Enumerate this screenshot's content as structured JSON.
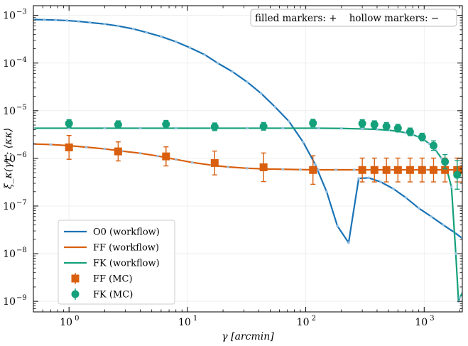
{
  "chart_data": {
    "type": "line",
    "xlabel": "γ [arcmin]",
    "ylabel": "ξ_κ(γ) : ⟨κκ⟩",
    "xscale": "log",
    "yscale": "log",
    "xlim": [
      0.5,
      2100
    ],
    "ylim": [
      6e-10,
      0.0016
    ],
    "x_ticks": [
      {
        "value": 1,
        "mant": "10",
        "exp": "0"
      },
      {
        "value": 10,
        "mant": "10",
        "exp": "1"
      },
      {
        "value": 100,
        "mant": "10",
        "exp": "2"
      },
      {
        "value": 1000,
        "mant": "10",
        "exp": "3"
      }
    ],
    "y_ticks": [
      {
        "value": 1e-09,
        "mant": "10",
        "exp": "−9"
      },
      {
        "value": 1e-08,
        "mant": "10",
        "exp": "−8"
      },
      {
        "value": 1e-07,
        "mant": "10",
        "exp": "−7"
      },
      {
        "value": 1e-06,
        "mant": "10",
        "exp": "−6"
      },
      {
        "value": 1e-05,
        "mant": "10",
        "exp": "−5"
      },
      {
        "value": 0.0001,
        "mant": "10",
        "exp": "−4"
      },
      {
        "value": 0.001,
        "mant": "10",
        "exp": "−3"
      }
    ],
    "grid": true,
    "legend_position": "lower-left",
    "annotation": "filled markers: +    hollow markers: −",
    "series": [
      {
        "name": "O0 (workflow)",
        "kind": "line",
        "color": "#1a73b5",
        "x": [
          0.5,
          0.62,
          0.77,
          0.96,
          1.2,
          1.5,
          2.0,
          2.6,
          3.5,
          4.5,
          6.0,
          8.0,
          10.5,
          14.0,
          18.0,
          24.0,
          32.0,
          42.0,
          55.0,
          72.0,
          95.0,
          120.0,
          150.0,
          185.0,
          230.0,
          280.0,
          340.0,
          430.0,
          550.0,
          700.0,
          900.0,
          1150.0,
          1450.0,
          1800.0,
          2100.0
        ],
        "y": [
          0.00082,
          0.00081,
          0.0008,
          0.00078,
          0.00075,
          0.00071,
          0.00066,
          0.0006,
          0.00052,
          0.00044,
          0.00036,
          0.00028,
          0.00021,
          0.00015,
          0.0001,
          6.6e-05,
          4e-05,
          2.3e-05,
          1.2e-05,
          6e-06,
          2.2e-06,
          7.5e-07,
          2e-07,
          3.8e-08,
          1.7e-08,
          3.8e-07,
          3.9e-07,
          3.2e-07,
          2.3e-07,
          1.5e-07,
          9e-08,
          6e-08,
          4e-08,
          2.8e-08,
          2.1e-08
        ]
      },
      {
        "name": "FF (workflow)",
        "kind": "line",
        "color": "#d95f0e",
        "x": [
          0.5,
          0.7,
          1.0,
          1.4,
          2.0,
          2.8,
          4.0,
          5.6,
          8.0,
          11.0,
          16.0,
          22.0,
          32.0,
          45.0,
          64.0,
          90.0,
          128.0,
          180.0,
          256.0,
          360.0,
          512.0,
          720.0,
          1024.0,
          1450.0,
          1800.0,
          2100.0
        ],
        "y": [
          2e-06,
          1.95e-06,
          1.85e-06,
          1.72e-06,
          1.58e-06,
          1.42e-06,
          1.28e-06,
          1.12e-06,
          9.5e-07,
          8.2e-07,
          7.2e-07,
          6.6e-07,
          6.2e-07,
          6e-07,
          5.9e-07,
          5.8e-07,
          5.75e-07,
          5.75e-07,
          5.75e-07,
          5.75e-07,
          5.75e-07,
          5.75e-07,
          5.75e-07,
          5.75e-07,
          5.75e-07,
          5.75e-07
        ]
      },
      {
        "name": "FK (workflow)",
        "kind": "line",
        "color": "#14a07a",
        "x": [
          0.5,
          1.0,
          2.0,
          4.0,
          8.0,
          16.0,
          32.0,
          64.0,
          128.0,
          200.0,
          300.0,
          400.0,
          500.0,
          600.0,
          700.0,
          800.0,
          900.0,
          1000.0,
          1100.0,
          1250.0,
          1400.0,
          1550.0,
          1700.0,
          1850.0,
          1950.0,
          2000.0,
          2100.0
        ],
        "y": [
          4.3e-06,
          4.3e-06,
          4.3e-06,
          4.3e-06,
          4.3e-06,
          4.3e-06,
          4.3e-06,
          4.3e-06,
          4.3e-06,
          4.25e-06,
          4.15e-06,
          4.05e-06,
          3.9e-06,
          3.7e-06,
          3.45e-06,
          3.15e-06,
          2.8e-06,
          2.45e-06,
          2.05e-06,
          1.5e-06,
          1e-06,
          6e-07,
          2.5e-07,
          1e-08,
          1e-09,
          1.2e-09,
          1.5e-09
        ]
      },
      {
        "name": "FF (MC)",
        "kind": "errorbar",
        "marker": "square",
        "color": "#d95f0e",
        "x": [
          1.0,
          2.6,
          6.6,
          17.0,
          44.0,
          115.0,
          300.0,
          380.0,
          480.0,
          600.0,
          760.0,
          960.0,
          1200.0,
          1500.0,
          1900.0,
          2100.0
        ],
        "y": [
          1.7e-06,
          1.4e-06,
          1.1e-06,
          8e-07,
          6.5e-07,
          5.7e-07,
          5.7e-07,
          5.7e-07,
          5.7e-07,
          5.7e-07,
          5.7e-07,
          5.7e-07,
          5.7e-07,
          5.7e-07,
          5.7e-07,
          5.7e-07
        ],
        "err": [
          0.25,
          0.2,
          0.2,
          0.25,
          0.3,
          0.3,
          0.25,
          0.25,
          0.25,
          0.25,
          0.25,
          0.25,
          0.25,
          0.25,
          0.25,
          0.25
        ]
      },
      {
        "name": "FK (MC)",
        "kind": "errorbar",
        "marker": "circle",
        "color": "#14a07a",
        "x": [
          1.0,
          2.6,
          6.6,
          17.0,
          44.0,
          115.0,
          300.0,
          380.0,
          480.0,
          600.0,
          760.0,
          960.0,
          1200.0,
          1500.0,
          1900.0
        ],
        "y": [
          5.4e-06,
          5.1e-06,
          5.2e-06,
          4.6e-06,
          4.7e-06,
          5.5e-06,
          5.4e-06,
          5.1e-06,
          4.7e-06,
          4.3e-06,
          3.6e-06,
          2.8e-06,
          1.85e-06,
          8.5e-07,
          4.5e-07
        ],
        "err": [
          0.08,
          0.08,
          0.08,
          0.08,
          0.08,
          0.08,
          0.08,
          0.08,
          0.08,
          0.08,
          0.08,
          0.08,
          0.1,
          0.15,
          0.3
        ]
      }
    ]
  }
}
